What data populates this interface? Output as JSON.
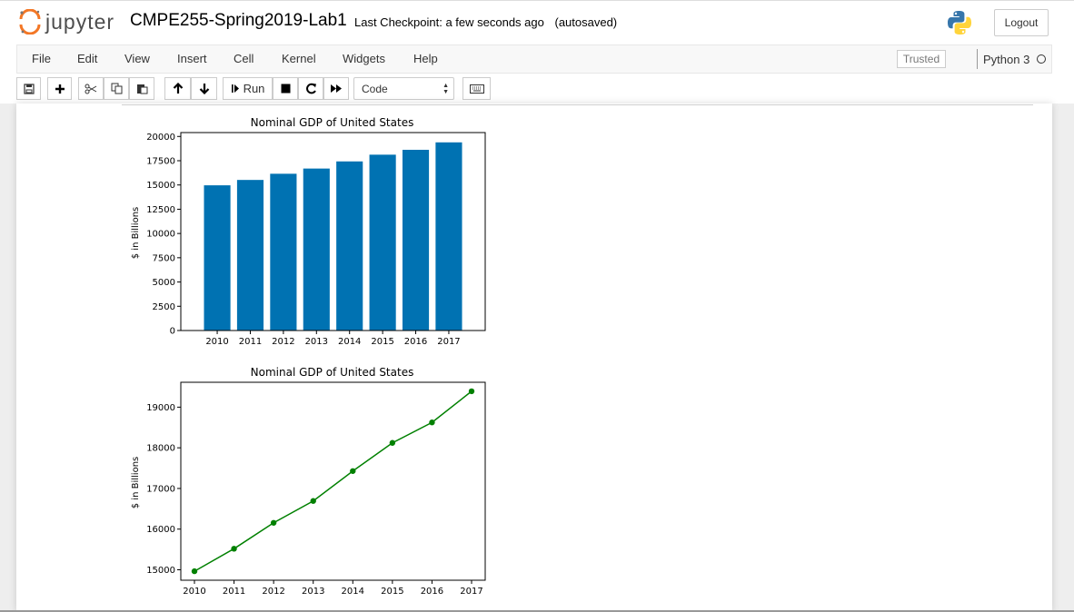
{
  "app": {
    "logo_text": "jupyter",
    "notebook_name": "CMPE255-Spring2019-Lab1",
    "checkpoint": "Last Checkpoint: a few seconds ago",
    "autosave_status": "(autosaved)",
    "logout_label": "Logout"
  },
  "menu": {
    "items": [
      "File",
      "Edit",
      "View",
      "Insert",
      "Cell",
      "Kernel",
      "Widgets",
      "Help"
    ],
    "trusted_label": "Trusted",
    "kernel_name": "Python 3"
  },
  "toolbar": {
    "run_label": "Run",
    "cell_type": "Code",
    "icons": [
      "save-icon",
      "plus-icon",
      "cut-icon",
      "copy-icon",
      "paste-icon",
      "arrow-up-icon",
      "arrow-down-icon",
      "step-forward-icon",
      "stop-icon",
      "restart-icon",
      "fast-forward-icon",
      "keyboard-icon"
    ]
  },
  "colors": {
    "bar": "#0072b2",
    "line": "#008000",
    "jupyter_orange": "#f37726"
  },
  "chart_data": [
    {
      "type": "bar",
      "title": "Nominal GDP of United States",
      "xlabel": "",
      "ylabel": "$ in Billions",
      "categories": [
        "2010",
        "2011",
        "2012",
        "2013",
        "2014",
        "2015",
        "2016",
        "2017"
      ],
      "values": [
        14964,
        15518,
        16155,
        16692,
        17428,
        18121,
        18624,
        19391
      ],
      "ylim": [
        0,
        20400
      ],
      "yticks": [
        0,
        2500,
        5000,
        7500,
        10000,
        12500,
        15000,
        17500,
        20000
      ],
      "grid": false
    },
    {
      "type": "line",
      "title": "Nominal GDP of United States",
      "xlabel": "",
      "ylabel": "$ in Billions",
      "x": [
        "2010",
        "2011",
        "2012",
        "2013",
        "2014",
        "2015",
        "2016",
        "2017"
      ],
      "series": [
        {
          "values": [
            14964,
            15518,
            16155,
            16692,
            17428,
            18121,
            18624,
            19391
          ]
        }
      ],
      "marker": "circle",
      "ylim": [
        14743,
        19612
      ],
      "yticks": [
        15000,
        16000,
        17000,
        18000,
        19000
      ],
      "grid": false
    }
  ]
}
